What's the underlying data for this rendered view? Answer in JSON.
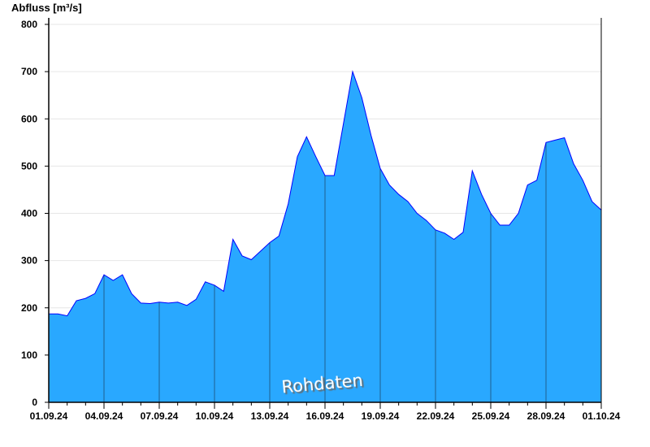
{
  "chart_data": {
    "type": "area",
    "ylabel": "Abfluss [m³/s]",
    "xlabel": "",
    "ylim": [
      0,
      800
    ],
    "yticks": [
      0,
      100,
      200,
      300,
      400,
      500,
      600,
      700,
      800
    ],
    "xlim": [
      "2024-09-01T00:00",
      "2024-10-01T00:00"
    ],
    "xticks": [
      "01.09.24",
      "04.09.24",
      "07.09.24",
      "10.09.24",
      "13.09.24",
      "16.09.24",
      "19.09.24",
      "22.09.24",
      "25.09.24",
      "28.09.24",
      "01.10.24"
    ],
    "grid": "horizontal",
    "watermark": "Rohdaten",
    "colors": {
      "fill": "#29a8ff",
      "line": "#0000ff",
      "separator": "#1f5f8f",
      "grid": "#e6e6e6"
    },
    "x": [
      "2024-09-01T00:00",
      "2024-09-01T12:00",
      "2024-09-02T00:00",
      "2024-09-02T12:00",
      "2024-09-03T00:00",
      "2024-09-03T12:00",
      "2024-09-04T00:00",
      "2024-09-04T12:00",
      "2024-09-05T00:00",
      "2024-09-05T12:00",
      "2024-09-06T00:00",
      "2024-09-06T12:00",
      "2024-09-07T00:00",
      "2024-09-07T12:00",
      "2024-09-08T00:00",
      "2024-09-08T12:00",
      "2024-09-09T00:00",
      "2024-09-09T12:00",
      "2024-09-10T00:00",
      "2024-09-10T12:00",
      "2024-09-11T00:00",
      "2024-09-11T12:00",
      "2024-09-12T00:00",
      "2024-09-12T12:00",
      "2024-09-13T00:00",
      "2024-09-13T12:00",
      "2024-09-14T00:00",
      "2024-09-14T12:00",
      "2024-09-15T00:00",
      "2024-09-15T12:00",
      "2024-09-16T00:00",
      "2024-09-16T12:00",
      "2024-09-17T00:00",
      "2024-09-17T12:00",
      "2024-09-18T00:00",
      "2024-09-18T12:00",
      "2024-09-19T00:00",
      "2024-09-19T12:00",
      "2024-09-20T00:00",
      "2024-09-20T12:00",
      "2024-09-21T00:00",
      "2024-09-21T12:00",
      "2024-09-22T00:00",
      "2024-09-22T12:00",
      "2024-09-23T00:00",
      "2024-09-23T12:00",
      "2024-09-24T00:00",
      "2024-09-24T12:00",
      "2024-09-25T00:00",
      "2024-09-25T12:00",
      "2024-09-26T00:00",
      "2024-09-26T12:00",
      "2024-09-27T00:00",
      "2024-09-27T12:00",
      "2024-09-28T00:00",
      "2024-09-28T12:00",
      "2024-09-29T00:00",
      "2024-09-29T12:00",
      "2024-09-30T00:00",
      "2024-09-30T12:00",
      "2024-10-01T00:00"
    ],
    "values": [
      187,
      187,
      183,
      215,
      220,
      230,
      270,
      258,
      270,
      230,
      210,
      209,
      212,
      210,
      212,
      205,
      218,
      255,
      248,
      235,
      345,
      310,
      302,
      320,
      338,
      352,
      420,
      520,
      562,
      520,
      480,
      480,
      590,
      700,
      645,
      565,
      495,
      460,
      440,
      425,
      400,
      385,
      365,
      358,
      345,
      360,
      490,
      440,
      400,
      375,
      375,
      400,
      460,
      470,
      550,
      555,
      560,
      505,
      470,
      425,
      407
    ]
  }
}
